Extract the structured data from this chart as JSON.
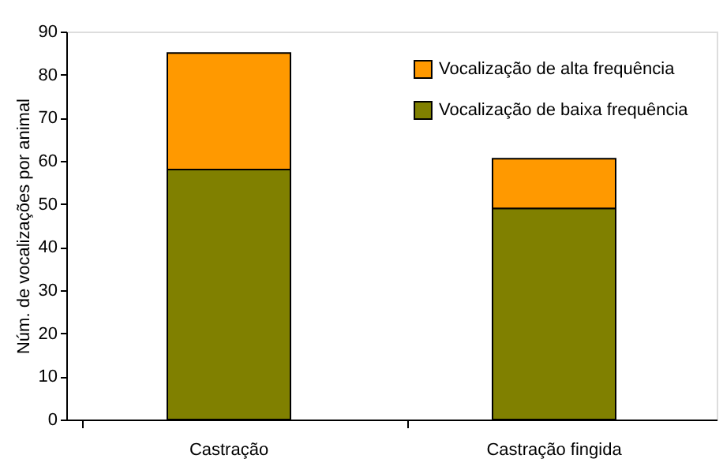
{
  "chart_data": {
    "type": "bar",
    "stacked": true,
    "ylabel": "Núm. de vocalizações por animal",
    "categories": [
      "Castração",
      "Castração fingida"
    ],
    "series": [
      {
        "name": "Vocalização de baixa frequência",
        "color": "#808000",
        "values": [
          58,
          49
        ]
      },
      {
        "name": "Vocalização de alta frequência",
        "color": "#ff9900",
        "values": [
          27,
          11.5
        ]
      }
    ],
    "ylim": [
      0,
      90
    ],
    "yticks": [
      0,
      10,
      20,
      30,
      40,
      50,
      60,
      70,
      80,
      90
    ],
    "grid": false,
    "legend": "top right"
  }
}
